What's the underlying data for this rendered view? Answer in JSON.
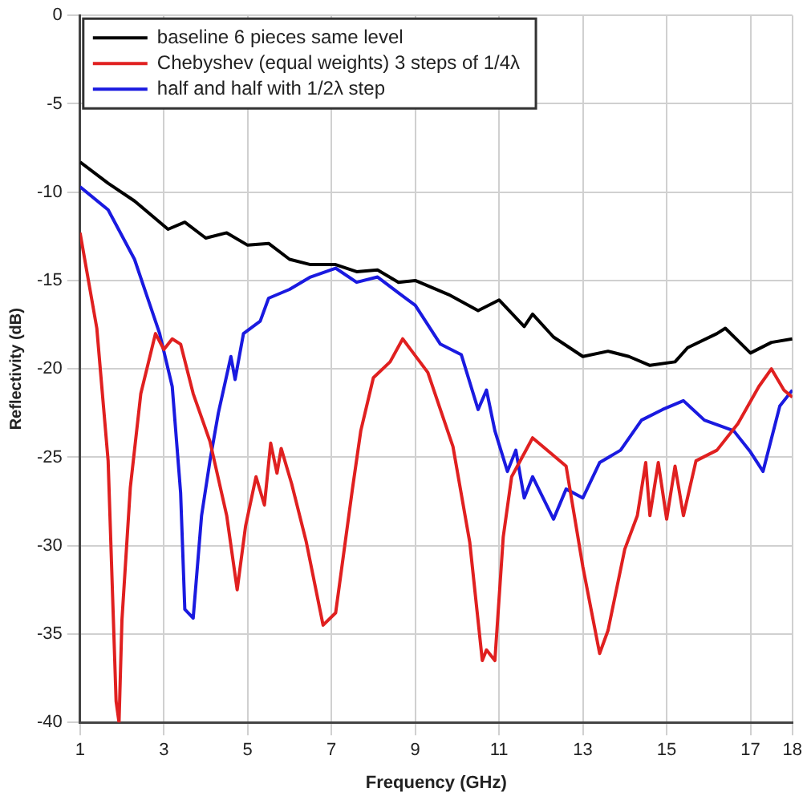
{
  "chart_data": {
    "type": "line",
    "xlabel": "Frequency (GHz)",
    "ylabel": "Reflectivity (dB)",
    "xlim": [
      1,
      18
    ],
    "xticks": [
      1,
      3,
      5,
      7,
      9,
      11,
      13,
      15,
      17,
      18
    ],
    "ylim": [
      -40,
      0
    ],
    "yticks": [
      0,
      -5,
      -10,
      -15,
      -20,
      -25,
      -30,
      -35,
      -40
    ],
    "grid": true,
    "legend": "top left",
    "marker": "none",
    "line_style": "solid",
    "series": [
      {
        "name": "baseline 6 pieces same level",
        "color": "#000000",
        "x": [
          1,
          1.67,
          2.3,
          3.1,
          3.5,
          4,
          4.5,
          5,
          5.5,
          6,
          6.5,
          7.1,
          7.6,
          8.1,
          8.6,
          9,
          9.8,
          10.5,
          11,
          11.6,
          11.8,
          12.3,
          13,
          13.6,
          14.1,
          14.6,
          15.2,
          15.5,
          16.2,
          16.4,
          17,
          17.5,
          18
        ],
        "values": [
          -8.3,
          -9.5,
          -10.5,
          -12.1,
          -11.7,
          -12.6,
          -12.3,
          -13,
          -12.9,
          -13.8,
          -14.1,
          -14.1,
          -14.5,
          -14.4,
          -15.1,
          -15,
          -15.8,
          -16.7,
          -16.1,
          -17.6,
          -16.9,
          -18.2,
          -19.3,
          -19,
          -19.3,
          -19.8,
          -19.6,
          -18.8,
          -18,
          -17.7,
          -19.1,
          -18.5,
          -18.3
        ]
      },
      {
        "name": "Chebyshev (equal weights) 3 steps of 1/4λ",
        "color": "#e02020",
        "x": [
          1,
          1.4,
          1.67,
          1.86,
          1.93,
          2,
          2.2,
          2.45,
          2.8,
          3,
          3.2,
          3.4,
          3.7,
          4.1,
          4.5,
          4.75,
          4.95,
          5.2,
          5.4,
          5.55,
          5.7,
          5.8,
          6.05,
          6.4,
          6.8,
          7.1,
          7.5,
          7.7,
          8,
          8.4,
          8.7,
          9.3,
          9.9,
          10.3,
          10.6,
          10.7,
          10.9,
          11.1,
          11.3,
          11.8,
          12.6,
          13,
          13.4,
          13.6,
          14,
          14.3,
          14.5,
          14.6,
          14.8,
          15,
          15.2,
          15.4,
          15.7,
          16.2,
          16.7,
          17.2,
          17.5,
          17.8,
          18
        ],
        "values": [
          -12.3,
          -17.7,
          -25.2,
          -38.8,
          -40,
          -34.2,
          -26.7,
          -21.4,
          -18,
          -18.9,
          -18.3,
          -18.6,
          -21.4,
          -24.1,
          -28.3,
          -32.5,
          -28.9,
          -26.1,
          -27.7,
          -24.2,
          -25.9,
          -24.5,
          -26.5,
          -29.8,
          -34.5,
          -33.8,
          -26.8,
          -23.5,
          -20.5,
          -19.6,
          -18.3,
          -20.2,
          -24.4,
          -29.8,
          -36.5,
          -35.9,
          -36.5,
          -29.5,
          -26.1,
          -23.9,
          -25.5,
          -31.2,
          -36.1,
          -34.8,
          -30.2,
          -28.3,
          -25.3,
          -28.3,
          -25.3,
          -28.5,
          -25.5,
          -28.3,
          -25.2,
          -24.6,
          -23.1,
          -21,
          -20,
          -21.2,
          -21.6
        ]
      },
      {
        "name": "half and half with 1/2λ step",
        "color": "#1a1ae0",
        "x": [
          1,
          1.67,
          2.3,
          2.6,
          2.9,
          3.2,
          3.4,
          3.5,
          3.7,
          3.9,
          4.1,
          4.3,
          4.6,
          4.7,
          4.9,
          5.3,
          5.5,
          6,
          6.5,
          7.1,
          7.6,
          8.1,
          8.6,
          9,
          9.6,
          10.1,
          10.5,
          10.7,
          10.9,
          11.2,
          11.4,
          11.6,
          11.8,
          12.3,
          12.6,
          13,
          13.4,
          13.9,
          14.4,
          14.9,
          15.4,
          15.9,
          16.6,
          17,
          17.3,
          17.7,
          18
        ],
        "values": [
          -9.7,
          -11,
          -13.8,
          -15.9,
          -18,
          -21,
          -27,
          -33.6,
          -34.1,
          -28.3,
          -25.2,
          -22.5,
          -19.3,
          -20.6,
          -18,
          -17.3,
          -16,
          -15.5,
          -14.8,
          -14.3,
          -15.1,
          -14.8,
          -15.7,
          -16.4,
          -18.6,
          -19.2,
          -22.3,
          -21.2,
          -23.5,
          -25.8,
          -24.6,
          -27.3,
          -26.1,
          -28.5,
          -26.8,
          -27.3,
          -25.3,
          -24.6,
          -22.9,
          -22.3,
          -21.8,
          -22.9,
          -23.5,
          -24.7,
          -25.8,
          -22.1,
          -21.2
        ]
      }
    ]
  }
}
